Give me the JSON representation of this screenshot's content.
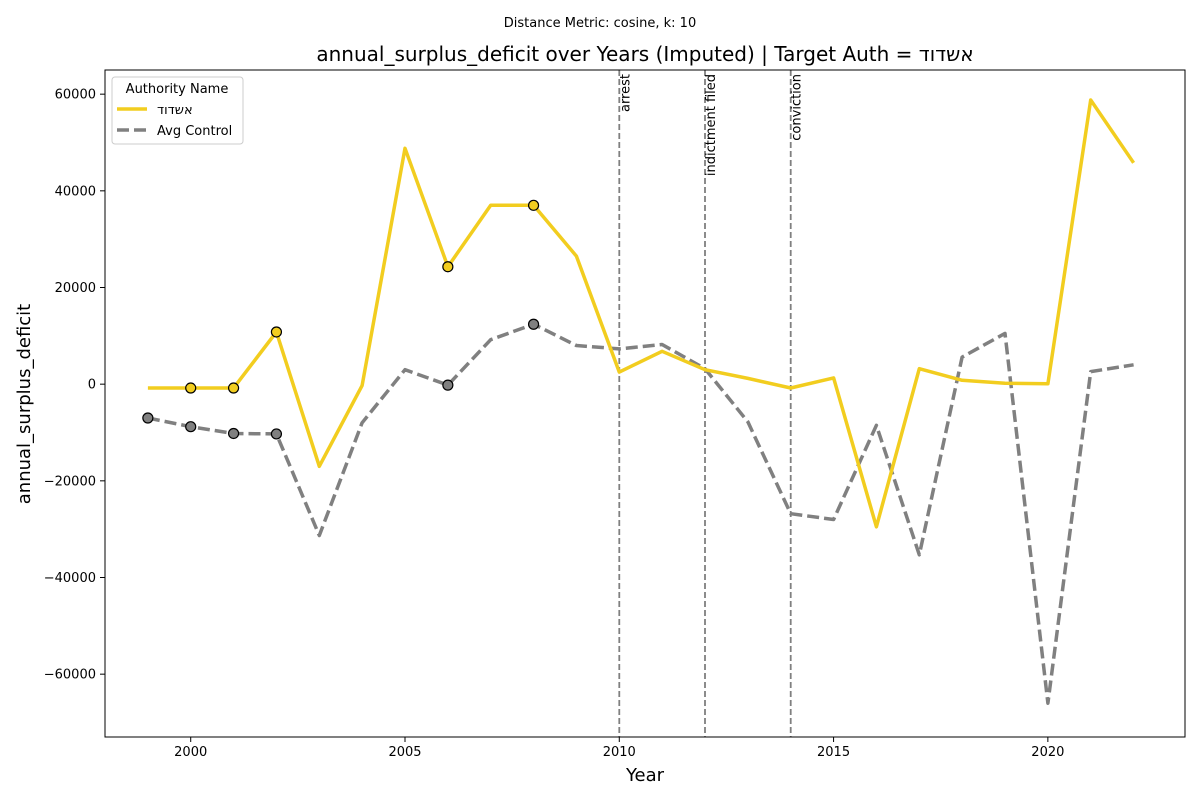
{
  "chart_data": {
    "type": "line",
    "suptitle": "Distance Metric: cosine, k: 10",
    "title": "annual_surplus_deficit over Years (Imputed) | Target Auth = אשדוד",
    "xlabel": "Year",
    "ylabel": "annual_surplus_deficit",
    "xlim": [
      1998,
      2023.2
    ],
    "ylim": [
      -73000,
      65000
    ],
    "xticks": [
      2000,
      2005,
      2010,
      2015,
      2020
    ],
    "yticks": [
      -60000,
      -40000,
      -20000,
      0,
      20000,
      40000,
      60000
    ],
    "ytick_labels": [
      "−60000",
      "−40000",
      "−20000",
      "0",
      "20000",
      "40000",
      "60000"
    ],
    "grid": false,
    "legend": {
      "title": "Authority Name",
      "placement": "top-left"
    },
    "x": [
      1999,
      2000,
      2001,
      2002,
      2003,
      2004,
      2005,
      2006,
      2007,
      2008,
      2009,
      2010,
      2011,
      2012,
      2013,
      2014,
      2015,
      2016,
      2017,
      2018,
      2019,
      2020,
      2021,
      2022
    ],
    "series": [
      {
        "name": "אשדוד",
        "color": "#f2cd1f",
        "style": "solid",
        "values": [
          -800,
          -800,
          -800,
          10800,
          -17000,
          -300,
          48800,
          24300,
          37000,
          37000,
          26500,
          2500,
          6800,
          3000,
          1200,
          -800,
          1300,
          -29500,
          3200,
          800,
          200,
          100,
          58800,
          45800
        ],
        "imputed_x": [
          2000,
          2001,
          2002,
          2006,
          2008
        ]
      },
      {
        "name": "Avg Control",
        "color": "#808080",
        "style": "dashed",
        "values": [
          -7000,
          -8800,
          -10200,
          -10300,
          -31300,
          -8000,
          3000,
          -200,
          9200,
          12400,
          8000,
          7300,
          8200,
          3200,
          -7800,
          -26800,
          -28000,
          -8500,
          -35300,
          5600,
          10500,
          -66000,
          2600,
          4000
        ],
        "imputed_x": [
          1999,
          2000,
          2001,
          2002,
          2006,
          2008
        ]
      }
    ],
    "annotations": [
      {
        "x": 2010,
        "label": "arrest"
      },
      {
        "x": 2012,
        "label": "indictment filed"
      },
      {
        "x": 2014,
        "label": "conviction"
      }
    ]
  }
}
